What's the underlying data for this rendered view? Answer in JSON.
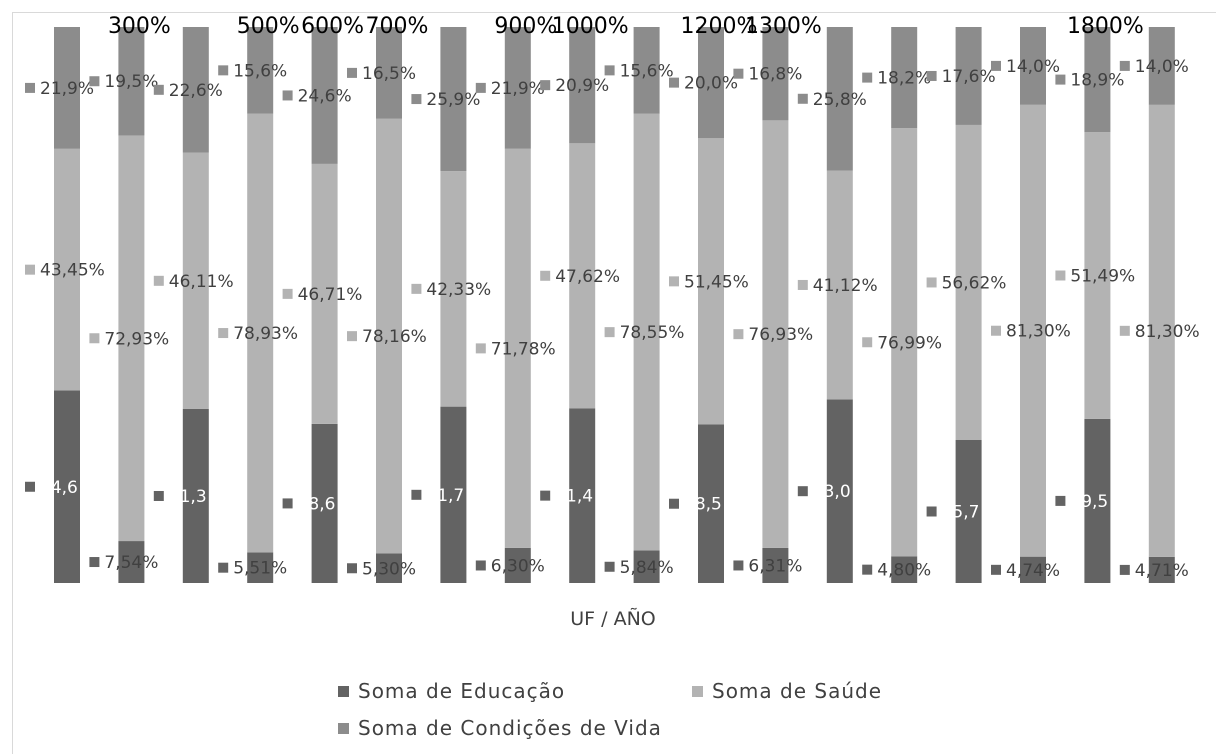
{
  "chart_data": {
    "type": "bar",
    "stacked": "percent",
    "xlabel": "UF / AÑO",
    "top_labels": [
      "300%",
      "500%",
      "600%",
      "700%",
      "900%",
      "1000%",
      "1200%",
      "1300%",
      "1800%"
    ],
    "series": [
      {
        "name": "Soma de Educação",
        "color": "#636363",
        "values": [
          34.6,
          7.54,
          31.3,
          5.51,
          28.6,
          5.3,
          31.7,
          6.3,
          31.4,
          5.84,
          28.5,
          6.31,
          33.0,
          4.8,
          25.7,
          4.74,
          29.5,
          4.71
        ],
        "labels": [
          "34,6",
          "7,54%",
          "31,3",
          "5,51%",
          "28,6",
          "5,30%",
          "31,7",
          "6,30%",
          "31,4",
          "5,84%",
          "28,5",
          "6,31%",
          "33,0",
          "4,80%",
          "25,7",
          "4,74%",
          "29,5",
          "4,71%"
        ]
      },
      {
        "name": "Soma de Saúde",
        "color": "#b3b3b3",
        "values": [
          43.45,
          72.93,
          46.11,
          78.93,
          46.71,
          78.16,
          42.33,
          71.78,
          47.62,
          78.55,
          51.45,
          76.93,
          41.12,
          76.99,
          56.62,
          81.3,
          51.49,
          81.3
        ],
        "labels": [
          "43,45%",
          "72,93%",
          "46,11%",
          "78,93%",
          "46,71%",
          "78,16%",
          "42,33%",
          "71,78%",
          "47,62%",
          "78,55%",
          "51,45%",
          "76,93%",
          "41,12%",
          "76,99%",
          "56,62%",
          "81,30%",
          "51,49%",
          "81,30%"
        ]
      },
      {
        "name": "Soma de Condições de Vida",
        "color": "#8c8c8c",
        "values": [
          21.9,
          19.5,
          22.6,
          15.6,
          24.6,
          16.5,
          25.9,
          21.9,
          20.9,
          15.6,
          20.0,
          16.8,
          25.8,
          18.2,
          17.6,
          14.0,
          18.9,
          14.0
        ],
        "labels": [
          "21,9%",
          "19,5%",
          "22,6%",
          "15,6%",
          "24,6%",
          "16,5%",
          "25,9%",
          "21,9%",
          "20,9%",
          "15,6%",
          "20,0%",
          "16,8%",
          "25,8%",
          "18,2%",
          "17,6%",
          "14,0%",
          "18,9%",
          "14,0%"
        ]
      }
    ]
  }
}
